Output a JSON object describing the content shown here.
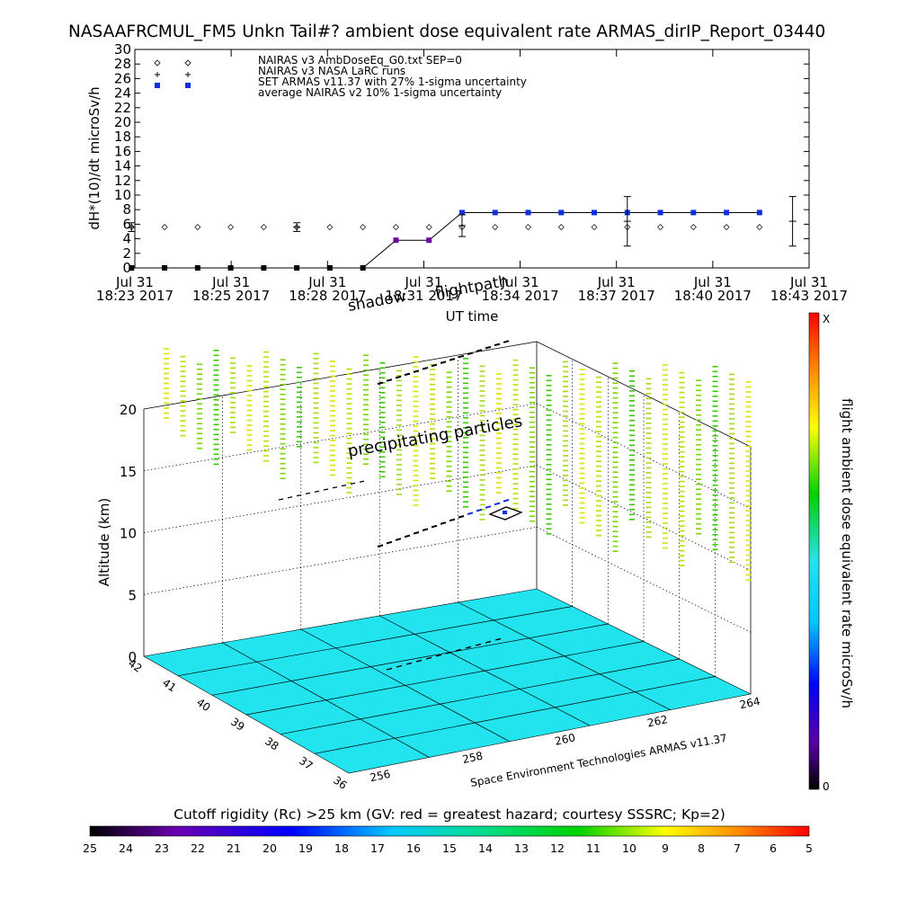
{
  "chart_data": [
    {
      "type": "scatter",
      "title": "NASAAFRCMUL_FM5 Unkn Tail#? ambient dose equivalent rate ARMAS_dirIP_Report_03440",
      "ylabel": "dH*(10)/dt microSv/h",
      "xlabel": "UT time",
      "ylim": [
        0,
        30
      ],
      "yticks": [
        0,
        2,
        4,
        6,
        8,
        10,
        12,
        14,
        16,
        18,
        20,
        22,
        24,
        26,
        28,
        30
      ],
      "xtick_labels": [
        {
          "top": "Jul 31",
          "bottom": "18:23 2017"
        },
        {
          "top": "Jul 31",
          "bottom": "18:25 2017"
        },
        {
          "top": "Jul 31",
          "bottom": "18:28 2017"
        },
        {
          "top": "Jul 31",
          "bottom": "18:31 2017"
        },
        {
          "top": "Jul 31",
          "bottom": "18:34 2017"
        },
        {
          "top": "Jul 31",
          "bottom": "18:37 2017"
        },
        {
          "top": "Jul 31",
          "bottom": "18:40 2017"
        },
        {
          "top": "Jul 31",
          "bottom": "18:43 2017"
        }
      ],
      "legend_position": "top",
      "legend": [
        {
          "symbol": "diamond",
          "label": "NAIRAS v3 AmbDoseEq_G0.txt SEP=0"
        },
        {
          "symbol": "plus",
          "label": "NAIRAS v3 NASA LaRC runs"
        },
        {
          "symbol": "filled-square",
          "label": "SET ARMAS v11.37 with 27% 1-sigma uncertainty"
        },
        {
          "symbol": "errorbar",
          "label": "average NAIRAS v2 10% 1-sigma uncertainty"
        }
      ],
      "series": [
        {
          "name": "NAIRAS v3 AmbDoseEq_G0.txt SEP=0",
          "x": [
            "18:23",
            "18:24",
            "18:25",
            "18:26",
            "18:27",
            "18:28",
            "18:29",
            "18:30",
            "18:31",
            "18:32",
            "18:33",
            "18:34",
            "18:35",
            "18:36",
            "18:37",
            "18:38",
            "18:39",
            "18:40",
            "18:41",
            "18:42"
          ],
          "values": [
            5.6,
            5.6,
            5.6,
            5.6,
            5.6,
            5.6,
            5.6,
            5.6,
            5.6,
            5.6,
            5.6,
            5.6,
            5.6,
            5.6,
            5.6,
            5.6,
            5.6,
            5.6,
            5.6,
            5.6
          ]
        },
        {
          "name": "SET ARMAS v11.37 with 27% 1-sigma uncertainty",
          "x": [
            "18:23",
            "18:24",
            "18:25",
            "18:26",
            "18:27",
            "18:28",
            "18:29",
            "18:30",
            "18:31",
            "18:32",
            "18:33",
            "18:34",
            "18:35",
            "18:36",
            "18:37",
            "18:38",
            "18:39",
            "18:40",
            "18:41",
            "18:42"
          ],
          "values": [
            0,
            0,
            0,
            0,
            0,
            0,
            0,
            0,
            3.8,
            3.8,
            7.6,
            7.6,
            7.6,
            7.6,
            7.6,
            7.6,
            7.6,
            7.6,
            7.6,
            7.6
          ]
        }
      ],
      "error_bars": [
        {
          "x": "18:23",
          "center": 5.6,
          "half_width": 0.6
        },
        {
          "x": "18:28",
          "center": 5.6,
          "half_width": 0.6
        },
        {
          "x": "18:33",
          "center": 5.8,
          "half_width": 1.5
        },
        {
          "x": "18:38",
          "center": 6.4,
          "half_width": 3.4
        },
        {
          "x": "18:43",
          "center": 6.4,
          "half_width": 3.4
        }
      ]
    },
    {
      "type": "scatter",
      "zlabel": "Altitude (km)",
      "z_ticks": [
        "0",
        "5",
        "10",
        "15",
        "20"
      ],
      "lat_ticks": [
        "36",
        "37",
        "38",
        "39",
        "40",
        "41",
        "42"
      ],
      "lon_ticks": [
        "256",
        "258",
        "260",
        "262",
        "264"
      ],
      "annotations": [
        "precipitating particles",
        "shadow",
        "flightpath",
        "shadow of flightpath"
      ],
      "credit": "Space Environment Technologies ARMAS v11.37",
      "floor_color": "#22e4ee",
      "right_colorbar": {
        "label": "flight ambient dose equivalent rate microSv/h",
        "top_label": "X",
        "bottom_label": "0"
      },
      "bottom_colorbar": {
        "title": "Cutoff rigidity (Rc) >25 km (GV: red = greatest hazard; courtesy SSSRC; Kp=2)",
        "labels": [
          "25",
          "24",
          "23",
          "22",
          "21",
          "20",
          "19",
          "18",
          "17",
          "16",
          "15",
          "14",
          "13",
          "12",
          "11",
          "10",
          "9",
          "8",
          "7",
          "6",
          "5"
        ]
      }
    }
  ]
}
